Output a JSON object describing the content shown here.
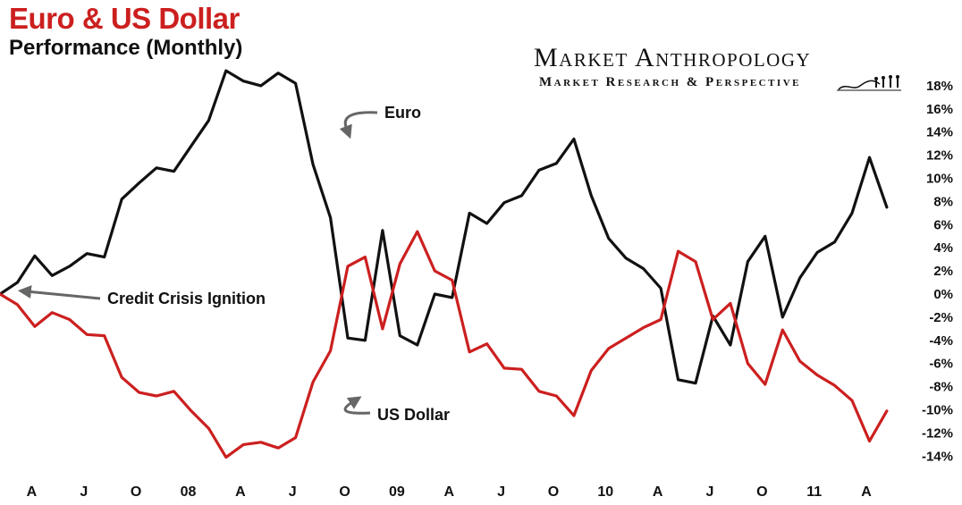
{
  "header": {
    "title": "Euro & US Dollar",
    "subtitle": "Performance (Monthly)",
    "brand": "Market Anthropology",
    "tagline": "Market Research & Perspective"
  },
  "colors": {
    "euro": "#111111",
    "usd": "#cc1f1f",
    "arrow": "#666666"
  },
  "chart_data": {
    "type": "line",
    "title": "Euro & US Dollar",
    "subtitle": "Performance (Monthly)",
    "x_tick_labels": [
      "A",
      "J",
      "O",
      "08",
      "A",
      "J",
      "O",
      "09",
      "A",
      "J",
      "O",
      "10",
      "A",
      "J",
      "O",
      "11",
      "A"
    ],
    "x_start_month": "2007-03",
    "y_ticks": [
      18,
      16,
      14,
      12,
      10,
      8,
      6,
      4,
      2,
      0,
      -2,
      -4,
      -6,
      -8,
      -10,
      -12,
      -14
    ],
    "y_tick_labels": [
      "18%",
      "16%",
      "14%",
      "12%",
      "10%",
      "8%",
      "6%",
      "4%",
      "2%",
      "0%",
      "-2%",
      "-4%",
      "-6%",
      "-8%",
      "-10%",
      "-12%",
      "-14%"
    ],
    "ylim": [
      -14,
      18
    ],
    "grid": false,
    "axis_side": "right",
    "series": [
      {
        "name": "Euro",
        "color": "#111111",
        "values": [
          0,
          1,
          3.3,
          1.6,
          2.4,
          3.5,
          3.2,
          8.2,
          9.6,
          10.9,
          10.6,
          12.8,
          15,
          19.3,
          18.4,
          18,
          19.1,
          18.2,
          11.2,
          6.6,
          -3.8,
          -4,
          5.5,
          -3.6,
          -4.4,
          0,
          -0.3,
          7,
          6.1,
          7.9,
          8.5,
          10.7,
          11.3,
          13.4,
          8.5,
          4.8,
          3.1,
          2.2,
          0.5,
          -7.4,
          -7.7,
          -1.9,
          -4.4,
          2.8,
          5,
          -2,
          1.4,
          3.6,
          4.5,
          7,
          11.8,
          7.5
        ]
      },
      {
        "name": "US Dollar",
        "color": "#cc1f1f",
        "values": [
          0,
          -0.9,
          -2.8,
          -1.6,
          -2.2,
          -3.5,
          -3.6,
          -7.2,
          -8.5,
          -8.8,
          -8.4,
          -10.1,
          -11.6,
          -14.1,
          -13,
          -12.8,
          -13.3,
          -12.4,
          -7.6,
          -4.9,
          2.4,
          3.2,
          -3,
          2.6,
          5.4,
          2,
          1.2,
          -5,
          -4.3,
          -6.4,
          -6.5,
          -8.4,
          -8.8,
          -10.5,
          -6.6,
          -4.7,
          -3.8,
          -2.9,
          -2.2,
          3.7,
          2.8,
          -2.2,
          -0.8,
          -6,
          -7.8,
          -3.1,
          -5.8,
          -7,
          -7.9,
          -9.2,
          -12.7,
          -10.1
        ]
      }
    ],
    "annotations": [
      {
        "text": "Euro",
        "series": "Euro",
        "month_index": 19.5,
        "value": 15.0
      },
      {
        "text": "Credit Crisis Ignition",
        "series": "Euro",
        "month_index": 1.2,
        "value": 0.2
      },
      {
        "text": "US Dollar",
        "series": "US Dollar",
        "month_index": 19.8,
        "value": -9.7
      }
    ]
  }
}
